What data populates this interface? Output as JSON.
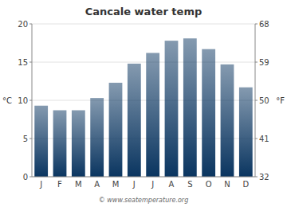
{
  "chart_data": {
    "type": "bar",
    "title": "Cancale water temp",
    "categories": [
      "J",
      "F",
      "M",
      "A",
      "M",
      "J",
      "J",
      "A",
      "S",
      "O",
      "N",
      "D"
    ],
    "values": [
      9.3,
      8.7,
      8.7,
      10.3,
      12.3,
      14.8,
      16.2,
      17.8,
      18.1,
      16.7,
      14.7,
      11.7
    ],
    "color": "#0A3560",
    "ylabel": "°C",
    "y2label": "°F",
    "ylim": [
      0,
      20
    ],
    "yticks": [
      0,
      5,
      10,
      15,
      20
    ],
    "y2lim": [
      32,
      68
    ],
    "y2ticks": [
      32,
      41,
      50,
      59,
      68
    ],
    "grid": true,
    "annotations": [
      {
        "text": "© www.seatemperature.org"
      }
    ]
  }
}
